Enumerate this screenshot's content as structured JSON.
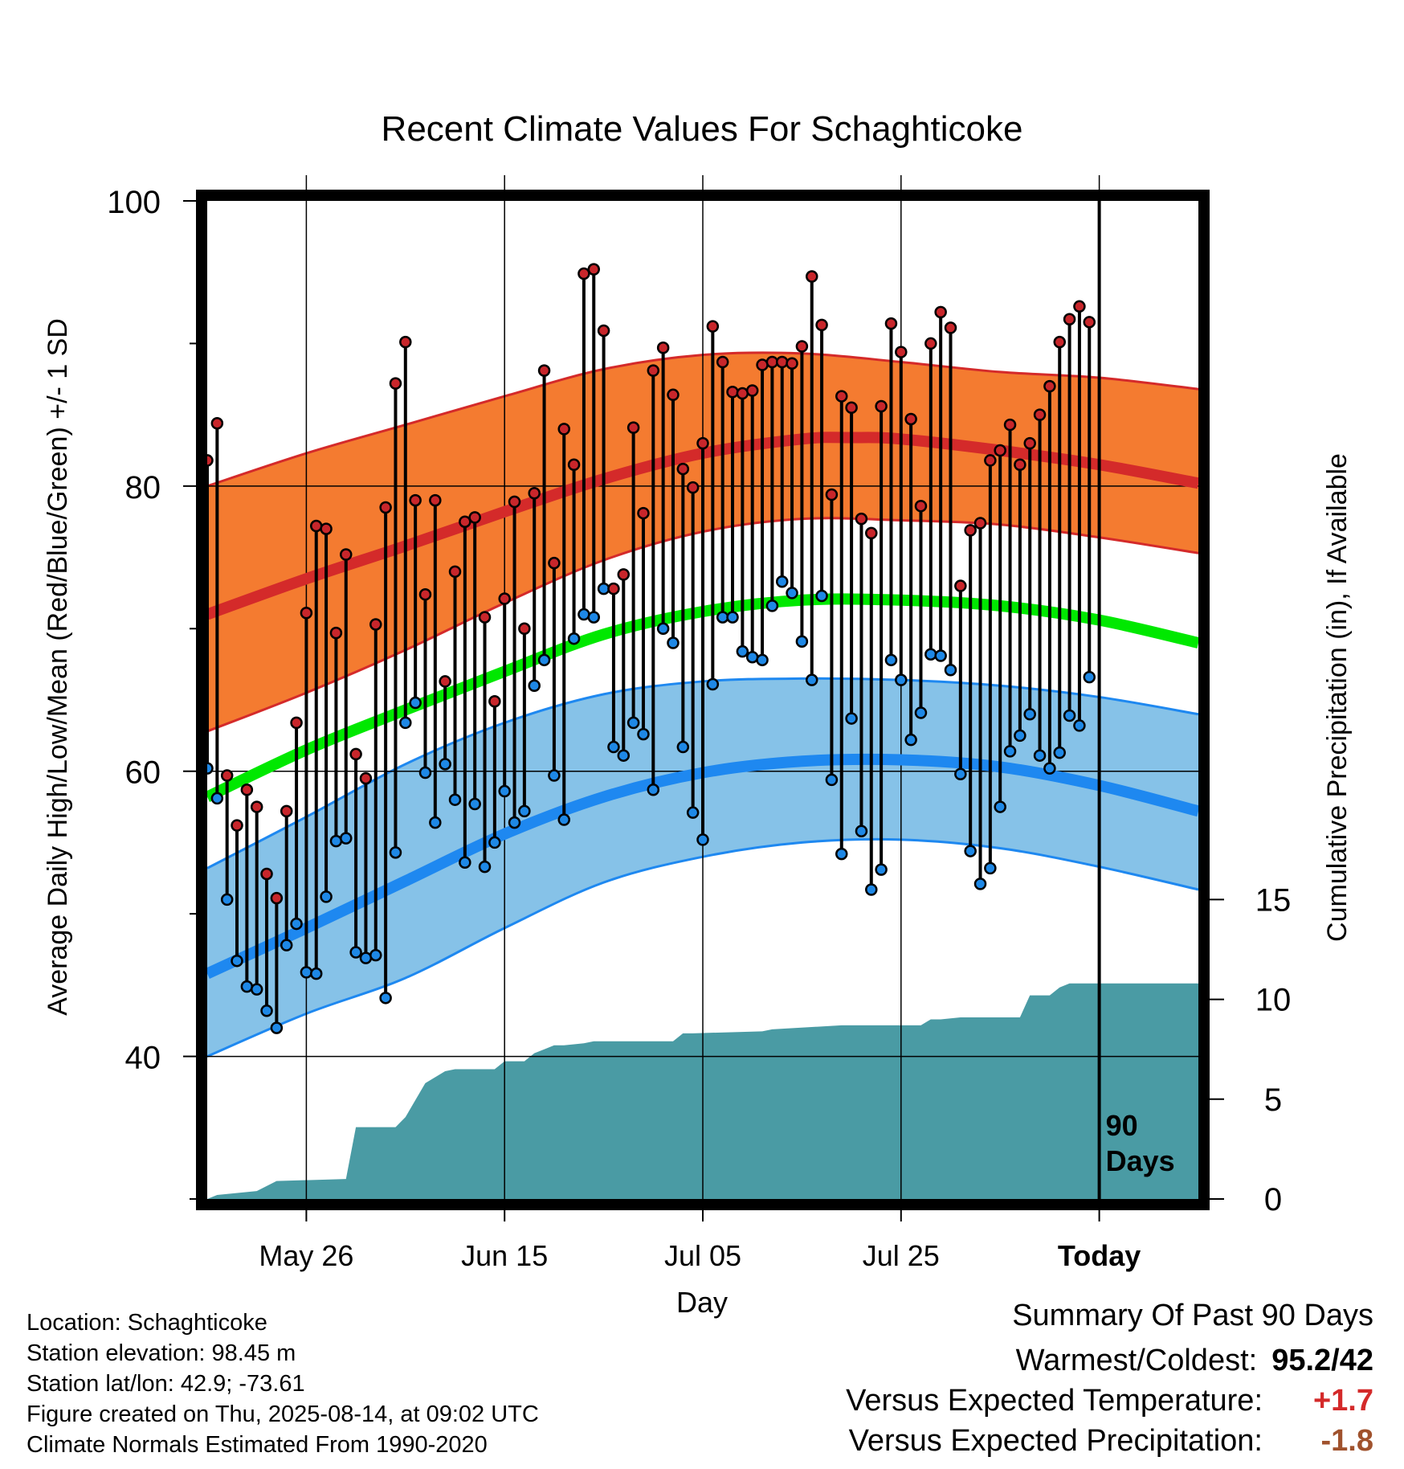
{
  "chart_data": {
    "type": "line",
    "title": "Recent Climate Values For Schaghticoke",
    "xlabel": "Day",
    "ylabel": "Average Daily High/Low/Mean (Red/Blue/Green) +/- 1 SD",
    "y2label": "Cumulative Precipitation (in), If Available",
    "ylim": [
      30,
      100
    ],
    "y2lim": [
      0,
      50
    ],
    "yticks": [
      "40",
      "60",
      "80",
      "100"
    ],
    "y2ticks": [
      "0",
      "5",
      "10",
      "15"
    ],
    "xticks": [
      "May 26",
      "Jun 15",
      "Jul 05",
      "Jul 25",
      "Today"
    ],
    "grid": true,
    "period_label": "90\nDays",
    "colors": {
      "normal_high": "#d42a2a",
      "high_band": "#f47b30",
      "normal_low": "#1e88f0",
      "low_band": "#86c2e8",
      "normal_mean": "#00e800",
      "precip": "#4a9ba4",
      "obs_high_point": "#c8262b",
      "obs_low_point": "#1e88e6"
    },
    "normals_note": "Day 0 = May 15; Today = day 90; ends day 100",
    "normal_high": [
      [
        0,
        71.0
      ],
      [
        10,
        73.5
      ],
      [
        20,
        75.8
      ],
      [
        30,
        78.2
      ],
      [
        40,
        80.5
      ],
      [
        50,
        82.3
      ],
      [
        60,
        83.3
      ],
      [
        65,
        83.4
      ],
      [
        70,
        83.3
      ],
      [
        80,
        82.5
      ],
      [
        90,
        81.5
      ],
      [
        100,
        80.2
      ]
    ],
    "high_sd_upper": [
      [
        0,
        80.0
      ],
      [
        10,
        82.3
      ],
      [
        20,
        84.3
      ],
      [
        30,
        86.3
      ],
      [
        40,
        88.2
      ],
      [
        50,
        89.2
      ],
      [
        60,
        89.3
      ],
      [
        70,
        88.7
      ],
      [
        80,
        88.0
      ],
      [
        90,
        87.6
      ],
      [
        100,
        86.8
      ]
    ],
    "high_sd_lower": [
      [
        0,
        62.8
      ],
      [
        10,
        65.5
      ],
      [
        20,
        68.5
      ],
      [
        30,
        71.8
      ],
      [
        40,
        74.8
      ],
      [
        50,
        76.8
      ],
      [
        60,
        77.7
      ],
      [
        70,
        77.6
      ],
      [
        80,
        77.3
      ],
      [
        90,
        76.4
      ],
      [
        100,
        75.3
      ]
    ],
    "normal_low": [
      [
        0,
        45.8
      ],
      [
        10,
        49.0
      ],
      [
        20,
        52.3
      ],
      [
        30,
        55.6
      ],
      [
        40,
        58.2
      ],
      [
        50,
        59.9
      ],
      [
        60,
        60.7
      ],
      [
        70,
        60.8
      ],
      [
        80,
        60.3
      ],
      [
        90,
        59.0
      ],
      [
        100,
        57.2
      ]
    ],
    "low_sd_upper": [
      [
        0,
        53.2
      ],
      [
        10,
        56.8
      ],
      [
        20,
        60.5
      ],
      [
        30,
        63.4
      ],
      [
        40,
        65.4
      ],
      [
        50,
        66.3
      ],
      [
        60,
        66.5
      ],
      [
        70,
        66.4
      ],
      [
        80,
        66.0
      ],
      [
        90,
        65.2
      ],
      [
        100,
        64.0
      ]
    ],
    "low_sd_lower": [
      [
        0,
        40.0
      ],
      [
        10,
        43.0
      ],
      [
        20,
        45.5
      ],
      [
        30,
        49.0
      ],
      [
        40,
        52.2
      ],
      [
        50,
        54.0
      ],
      [
        60,
        55.0
      ],
      [
        70,
        55.2
      ],
      [
        80,
        54.6
      ],
      [
        90,
        53.3
      ],
      [
        100,
        51.7
      ]
    ],
    "normal_mean": [
      [
        0,
        58.2
      ],
      [
        10,
        61.5
      ],
      [
        20,
        64.3
      ],
      [
        30,
        67.0
      ],
      [
        40,
        69.6
      ],
      [
        50,
        71.2
      ],
      [
        60,
        72.0
      ],
      [
        70,
        72.0
      ],
      [
        80,
        71.6
      ],
      [
        90,
        70.6
      ],
      [
        100,
        69.0
      ]
    ],
    "obs_high": [
      81.8,
      84.4,
      59.7,
      56.2,
      58.7,
      57.5,
      52.8,
      51.1,
      57.2,
      63.4,
      71.1,
      77.2,
      77.0,
      69.7,
      75.2,
      61.2,
      59.5,
      70.3,
      78.5,
      87.2,
      90.1,
      79.0,
      72.4,
      79.0,
      66.3,
      74.0,
      77.5,
      77.8,
      70.8,
      64.9,
      72.1,
      78.9,
      70.0,
      79.5,
      88.1,
      74.6,
      84.0,
      81.5,
      94.9,
      95.2,
      90.9,
      72.8,
      73.8,
      84.1,
      78.1,
      88.1,
      89.7,
      86.4,
      81.2,
      79.9,
      83.0,
      91.2,
      88.7,
      86.6,
      86.5,
      86.7,
      88.5,
      88.7,
      88.7,
      88.6,
      89.8,
      94.7,
      91.3,
      79.4,
      86.3,
      85.5,
      77.7,
      76.7,
      85.6,
      91.4,
      89.4,
      84.7,
      78.6,
      90.0,
      92.2,
      91.1,
      73.0,
      76.9,
      77.4,
      81.8,
      82.5,
      84.3,
      81.5,
      83.0,
      85.0,
      87.0,
      90.1,
      91.7,
      92.6,
      91.5
    ],
    "obs_low": [
      60.2,
      58.1,
      51.0,
      46.7,
      44.9,
      44.7,
      43.2,
      42.0,
      47.8,
      49.3,
      45.9,
      45.8,
      51.2,
      55.1,
      55.3,
      47.3,
      46.9,
      47.1,
      44.1,
      54.3,
      63.4,
      64.8,
      59.9,
      56.4,
      60.5,
      58.0,
      53.6,
      57.7,
      53.3,
      55.0,
      58.6,
      56.4,
      57.2,
      66.0,
      67.8,
      59.7,
      56.6,
      69.3,
      71.0,
      70.8,
      72.8,
      61.7,
      61.1,
      63.4,
      62.6,
      58.7,
      70.0,
      69.0,
      61.7,
      57.1,
      55.2,
      66.1,
      70.8,
      70.8,
      68.4,
      68.0,
      67.8,
      71.6,
      73.3,
      72.5,
      69.1,
      66.4,
      72.3,
      59.4,
      54.2,
      63.7,
      55.8,
      51.7,
      53.1,
      67.8,
      66.4,
      62.2,
      64.1,
      68.2,
      68.1,
      67.1,
      59.8,
      54.4,
      52.1,
      53.2,
      57.5,
      61.4,
      62.5,
      64.0,
      61.1,
      60.2,
      61.3,
      63.9,
      63.2,
      66.6
    ],
    "precip_cumulative": [
      [
        0,
        0
      ],
      [
        1,
        0.2
      ],
      [
        5,
        0.4
      ],
      [
        7,
        0.9
      ],
      [
        14,
        1.0
      ],
      [
        15,
        3.6
      ],
      [
        19,
        3.6
      ],
      [
        20,
        4.1
      ],
      [
        22,
        5.8
      ],
      [
        24,
        6.4
      ],
      [
        25,
        6.5
      ],
      [
        29,
        6.5
      ],
      [
        30,
        6.9
      ],
      [
        32,
        6.9
      ],
      [
        33,
        7.3
      ],
      [
        34,
        7.5
      ],
      [
        35,
        7.7
      ],
      [
        36,
        7.7
      ],
      [
        38,
        7.8
      ],
      [
        39,
        7.9
      ],
      [
        47,
        7.9
      ],
      [
        48,
        8.3
      ],
      [
        49,
        8.3
      ],
      [
        56,
        8.4
      ],
      [
        57,
        8.5
      ],
      [
        64,
        8.7
      ],
      [
        65,
        8.7
      ],
      [
        72,
        8.7
      ],
      [
        73,
        9.0
      ],
      [
        74,
        9.0
      ],
      [
        76,
        9.1
      ],
      [
        82,
        9.1
      ],
      [
        83,
        10.2
      ],
      [
        85,
        10.2
      ],
      [
        86,
        10.6
      ],
      [
        87,
        10.8
      ],
      [
        100,
        10.8
      ]
    ]
  },
  "footer": {
    "location": "Location: Schaghticoke",
    "elevation": "Station elevation: 98.45 m",
    "latlon": "Station lat/lon: 42.9; -73.61",
    "created": "Figure created on Thu, 2025-08-14, at 09:02 UTC",
    "normals": "Climate Normals Estimated From 1990-2020"
  },
  "summary": {
    "title": "Summary Of Past 90 Days",
    "warmest_label": "Warmest/Coldest:",
    "warmest_value": "95.2/42",
    "temp_label": "Versus Expected Temperature:",
    "temp_value": "+1.7",
    "temp_color": "#d42a2a",
    "precip_label": "Versus Expected Precipitation:",
    "precip_value": "-1.8",
    "precip_color": "#a0522d"
  }
}
